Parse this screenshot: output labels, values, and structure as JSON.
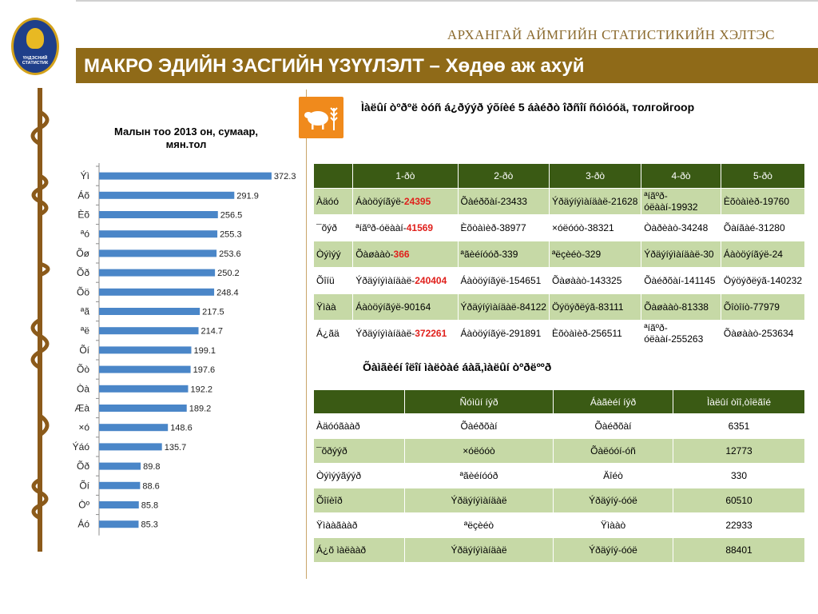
{
  "header": {
    "org_title": "АРХАНГАЙ АЙМГИЙН СТАТИСТИКИЙН ХЭЛТЭС",
    "main_title": "МАКРО ЭДИЙН ЗАСГИЙН ҮЗҮҮЛЭЛТ – Хөдөө аж ахуй",
    "logo_text": "ҮНДЭСНИЙ СТАТИСТИК"
  },
  "icons": {
    "sheep": "sheep-wheat-icon",
    "logo": "national-statistics-logo-icon"
  },
  "colors": {
    "title_band": "#8f6a18",
    "header_row": "#3a5a14",
    "alt_row": "#c6d9a6",
    "bar": "#4a86c8",
    "accent_red": "#e0201c",
    "sheep_box": "#f08a1c"
  },
  "table1": {
    "title": "Ìàëûí òºðºë òóñ á¿ðýýð ýõíèé 5 áàéðò îðñîí ñóìóóä, толгойгоор",
    "headers": [
      "",
      "1-ðò",
      "2-ðò",
      "3-ðò",
      "4-ðò",
      "5-ðò"
    ],
    "rows": [
      {
        "label": "Àäóó",
        "c1": "Áàòöýíãýë-",
        "c1v": "24395",
        "c2": "Õàéðõàí-23433",
        "c3": "Ýðäýíýìàíäàë-21628",
        "c4": "ªíãºð-óëààí-19932",
        "c5": "Èõòàìèð-19760"
      },
      {
        "label": "¯õýð",
        "c1": "ªíãºð-óëààí-",
        "c1v": "41569",
        "c2": "Èõòàìèð-38977",
        "c3": "×óëóóò-38321",
        "c4": "Òàðèàò-34248",
        "c5": "Õàíãàé-31280"
      },
      {
        "label": "Òýìýý",
        "c1": "Õàøààò-",
        "c1v": "366",
        "c2": "ªãèéíóóð-339",
        "c3": "ªëçèéò-329",
        "c4": "Ýðäýíýìàíäàë-30",
        "c5": "Áàòöýíãýë-24"
      },
      {
        "label": "Õîíü",
        "c1": "Ýðäýíýìàíäàë-",
        "c1v": "240404",
        "c2": "Áàòöýíãýë-154651",
        "c3": "Õàøààò-143325",
        "c4": "Õàéðõàí-141145",
        "c5": "Öýöýðëýã-140232"
      },
      {
        "label": "Ÿìàà",
        "c1": "Áàòöýíãýë-90164",
        "c1v": "",
        "c2": "Ýðäýíýìàíäàë-84122",
        "c3": "Öýöýðëýã-83111",
        "c4": "Õàøààò-81338",
        "c5": "Õîòîíò-77979"
      },
      {
        "label": "Á¿ãä",
        "c1": "Ýðäýíýìàíäàë-",
        "c1v": "372261",
        "c2": "Áàòöýíãýë-291891",
        "c3": "Èõòàìèð-256511",
        "c4": "ªíãºð-óëààí-255263",
        "c5": "Õàøààò-253634"
      }
    ]
  },
  "table2": {
    "title": "Õàìãèéí îëîí ìàëòàé áàã,ìàëûí òºðëººð",
    "headers": [
      "",
      "Ñóìûí íýð",
      "Áàãèéí íýð",
      "Ìàëûí òîî,òîëãîé"
    ],
    "rows": [
      {
        "label": "Àäóóãààð",
        "sum": "Õàéðõàí",
        "bag": "Õàéðõàí",
        "count": "6351"
      },
      {
        "label": "¯õðýýð",
        "sum": "×óëóóò",
        "bag": "Õàëóóí-óñ",
        "count": "12773"
      },
      {
        "label": "Òýìýýãýýð",
        "sum": "ªãèéíóóð",
        "bag": "Äîéò",
        "count": "330"
      },
      {
        "label": "Õîíèîð",
        "sum": "Ýðäýíýìàíäàë",
        "bag": "Ýðäýíý-óóë",
        "count": "60510"
      },
      {
        "label": "Ÿìààãààð",
        "sum": "ªëçèéò",
        "bag": "Ÿìààò",
        "count": "22933"
      },
      {
        "label": "Á¿õ ìàëààð",
        "sum": "Ýðäýíýìàíäàë",
        "bag": "Ýðäýíý-óóë",
        "count": "88401"
      }
    ]
  },
  "chart_data": {
    "type": "bar",
    "orientation": "horizontal",
    "title": "Малын тоо 2013 он, сумаар, мян.тол",
    "categories": [
      "Ýì",
      "Áõ",
      "Èõ",
      "ªó",
      "Õø",
      "Õð",
      "Õö",
      "ªã",
      "ªë",
      "Õí",
      "Õò",
      "Òà",
      "Æà",
      "×ó",
      "Ýáó",
      "Õð",
      "Õí",
      "Òº",
      "Áó"
    ],
    "values": [
      372.3,
      291.9,
      256.5,
      255.3,
      253.6,
      250.2,
      248.4,
      217.5,
      214.7,
      199.1,
      197.6,
      192.2,
      189.2,
      148.6,
      135.7,
      89.8,
      88.6,
      85.8,
      85.3
    ],
    "data_labels": [
      "372.3",
      "291.9",
      "256.5",
      "255.3",
      "253.6",
      "250.2",
      "248.4",
      "217.5",
      "214.7",
      "199.1",
      "197.6",
      "192.2",
      "189.2",
      "148.6",
      "135.7",
      "89.8",
      "88.6",
      "85.8",
      "85.3"
    ],
    "xlim": [
      0,
      400
    ],
    "grid": false,
    "legend": "none"
  }
}
